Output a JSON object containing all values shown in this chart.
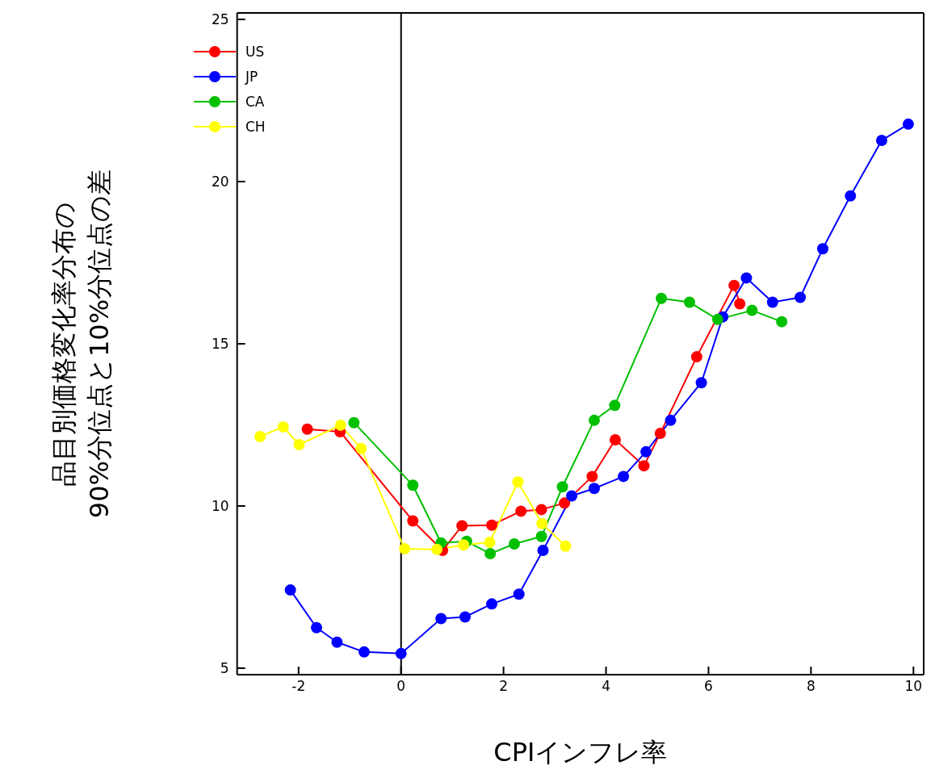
{
  "chart_data": {
    "type": "line",
    "xlabel": "CPIインフレ率",
    "ylabel": "品目別価格変化率分布の\n90%分位点と10%分位点の差",
    "xlim": [
      -3.2,
      10.2
    ],
    "xticks": [
      -2,
      0,
      2,
      4,
      6,
      8,
      10
    ],
    "ylim": [
      4.8,
      25.2
    ],
    "yticks": [
      5,
      10,
      15,
      20,
      25
    ],
    "grid": false,
    "legend": "top left",
    "marker": "circle",
    "line_style": "solid",
    "ref_lines": [
      {
        "axis": "x",
        "value": 0,
        "color": "#000000"
      }
    ],
    "series": [
      {
        "name": "US",
        "color": "#ff0000",
        "x": [
          -1.83,
          -1.19,
          0.23,
          0.81,
          1.19,
          1.77,
          2.34,
          2.74,
          3.19,
          3.73,
          4.18,
          4.74,
          5.06,
          5.77,
          6.5,
          6.61
        ],
        "values": [
          12.37,
          12.29,
          9.54,
          8.63,
          9.39,
          9.41,
          9.84,
          9.89,
          10.09,
          10.91,
          12.04,
          11.24,
          12.24,
          14.6,
          16.8,
          16.23
        ]
      },
      {
        "name": "JP",
        "color": "#0000ff",
        "x": [
          -2.16,
          -1.65,
          -1.25,
          -0.72,
          0,
          0.78,
          1.25,
          1.77,
          2.3,
          2.77,
          3.33,
          3.77,
          4.34,
          4.78,
          5.26,
          5.86,
          6.28,
          6.74,
          7.25,
          7.79,
          8.23,
          8.77,
          9.38,
          9.9
        ],
        "values": [
          7.41,
          6.25,
          5.8,
          5.5,
          5.45,
          6.53,
          6.58,
          6.98,
          7.28,
          8.63,
          10.31,
          10.54,
          10.91,
          11.67,
          12.64,
          13.8,
          15.83,
          17.03,
          16.28,
          16.43,
          17.93,
          19.56,
          21.27,
          21.77
        ]
      },
      {
        "name": "CA",
        "color": "#00c000",
        "x": [
          -0.92,
          0.23,
          0.78,
          1.28,
          1.74,
          2.21,
          2.74,
          3.15,
          3.77,
          4.17,
          5.08,
          5.63,
          6.18,
          6.85,
          7.43
        ],
        "values": [
          12.57,
          10.64,
          8.86,
          8.91,
          8.53,
          8.83,
          9.06,
          10.59,
          12.64,
          13.1,
          16.4,
          16.28,
          15.75,
          16.03,
          15.68
        ]
      },
      {
        "name": "CH",
        "color": "#ffff00",
        "x": [
          -2.75,
          -2.3,
          -1.99,
          -1.18,
          -0.78,
          0.07,
          0.7,
          1.22,
          1.73,
          2.28,
          2.75,
          3.21
        ],
        "values": [
          12.14,
          12.44,
          11.89,
          12.49,
          11.77,
          8.68,
          8.66,
          8.8,
          8.88,
          10.74,
          9.46,
          8.76
        ]
      }
    ]
  }
}
